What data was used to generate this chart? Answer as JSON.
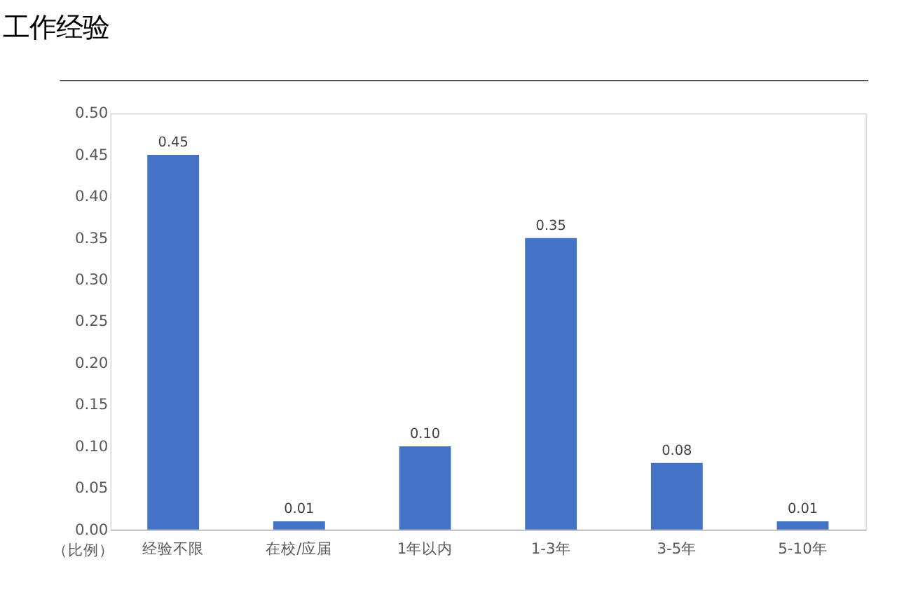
{
  "chart_data": {
    "type": "bar",
    "title": "工作经验",
    "ylabel": "（比例）",
    "categories": [
      "经验不限",
      "在校/应届",
      "1年以内",
      "1-3年",
      "3-5年",
      "5-10年"
    ],
    "values": [
      0.45,
      0.01,
      0.1,
      0.35,
      0.08,
      0.01
    ],
    "value_labels": [
      "0.45",
      "0.01",
      "0.10",
      "0.35",
      "0.08",
      "0.01"
    ],
    "color": "#4472c4",
    "ylim": [
      0,
      0.5
    ],
    "yticks": [
      {
        "value": 0,
        "label": "0.00"
      },
      0.05,
      {
        "value": 0.1,
        "label": "0.10"
      },
      0.15,
      {
        "value": 0.2,
        "label": "0.20"
      },
      0.25,
      {
        "value": 0.3,
        "label": "0.30"
      },
      0.35,
      {
        "value": 0.4,
        "label": "0.40"
      },
      0.45,
      {
        "value": 0.5,
        "label": "0.50"
      }
    ],
    "data_labels": true,
    "grid": false
  }
}
